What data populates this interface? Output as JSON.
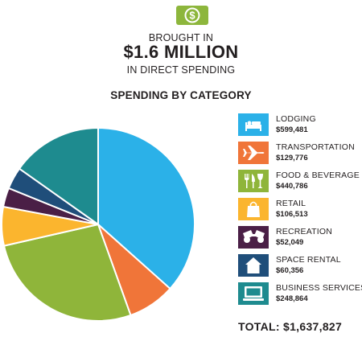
{
  "header": {
    "icon": "dollar-bill-icon",
    "icon_color": "#8db63c",
    "intro": "BROUGHT IN",
    "amount": "$1.6 MILLION",
    "outro": "IN DIRECT SPENDING"
  },
  "chart_data": {
    "type": "pie",
    "title": "SPENDING BY CATEGORY",
    "start": "12 o'clock, clockwise",
    "slices": [
      {
        "name": "LODGING",
        "label": "$599,481",
        "value": 599481,
        "color": "#2bb1e8",
        "icon": "bed-icon"
      },
      {
        "name": "TRANSPORTATION",
        "label": "$129,776",
        "value": 129776,
        "color": "#f07539",
        "icon": "airplane-icon"
      },
      {
        "name": "FOOD & BEVERAGE",
        "label": "$440,786",
        "value": 440786,
        "color": "#8fb53a",
        "icon": "fork-knife-glass-icon"
      },
      {
        "name": "RETAIL",
        "label": "$106,513",
        "value": 106513,
        "color": "#fbb52e",
        "icon": "shopping-bag-icon"
      },
      {
        "name": "RECREATION",
        "label": "$52,049",
        "value": 52049,
        "color": "#4a1f46",
        "icon": "binoculars-icon"
      },
      {
        "name": "SPACE RENTAL",
        "label": "$60,356",
        "value": 60356,
        "color": "#1f4e7a",
        "icon": "house-icon"
      },
      {
        "name": "BUSINESS SERVICES",
        "label": "$248,864",
        "value": 248864,
        "color": "#1e8b8f",
        "icon": "computer-icon"
      }
    ],
    "legend_position": "right"
  },
  "total": "TOTAL: $1,637,827"
}
